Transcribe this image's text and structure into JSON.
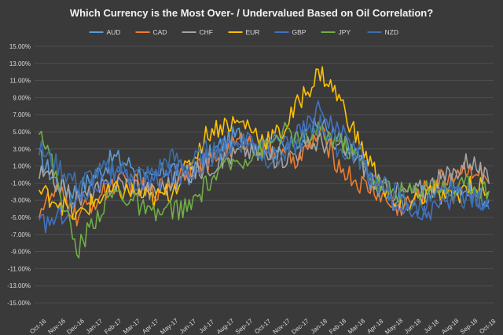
{
  "chart_data": {
    "type": "line",
    "title": "Which Currency is the Most Over- / Undervalued Based on Oil Correlation?",
    "xlabel": "",
    "ylabel": "",
    "ylim": [
      -15,
      15
    ],
    "y_ticks": [
      "15.00%",
      "13.00%",
      "11.00%",
      "9.00%",
      "7.00%",
      "5.00%",
      "3.00%",
      "1.00%",
      "-1.00%",
      "-3.00%",
      "-5.00%",
      "-7.00%",
      "-9.00%",
      "-11.00%",
      "-13.00%",
      "-15.00%"
    ],
    "x_ticks": [
      "Oct-16",
      "Nov-16",
      "Dec-16",
      "Jan-17",
      "Feb-17",
      "Mar-17",
      "Apr-17",
      "May-17",
      "Jun-17",
      "Jul-17",
      "Aug-17",
      "Sep-17",
      "Oct-17",
      "Nov-17",
      "Dec-17",
      "Jan-18",
      "Feb-18",
      "Mar-18",
      "Apr-18",
      "May-18",
      "Jun-18",
      "Jul-18",
      "Aug-18",
      "Sep-18",
      "Oct-18"
    ],
    "legend_position": "top",
    "grid": true,
    "series": [
      {
        "name": "AUD",
        "color": "#5b9bd5",
        "values": [
          2.0,
          -1.0,
          -2.0,
          0.0,
          2.0,
          1.0,
          -1.0,
          1.0,
          0.0,
          2.0,
          4.0,
          5.0,
          3.0,
          3.0,
          4.0,
          6.0,
          4.0,
          2.0,
          -2.0,
          -3.0,
          -3.0,
          -2.0,
          -1.0,
          -2.0,
          -3.0
        ]
      },
      {
        "name": "CAD",
        "color": "#ed7d31",
        "values": [
          -4.0,
          -2.0,
          -5.0,
          -3.0,
          -1.0,
          -1.0,
          -2.0,
          -1.0,
          1.0,
          1.0,
          3.0,
          4.0,
          3.0,
          2.0,
          2.0,
          5.0,
          1.0,
          -1.0,
          -2.0,
          -4.0,
          -3.0,
          -1.0,
          0.0,
          1.0,
          -1.0
        ]
      },
      {
        "name": "CHF",
        "color": "#a5a5a5",
        "values": [
          0.0,
          -1.0,
          -3.0,
          -2.0,
          -1.0,
          -1.0,
          -2.0,
          -1.0,
          0.0,
          1.0,
          2.0,
          3.0,
          2.0,
          2.0,
          3.0,
          4.0,
          3.0,
          2.0,
          -1.0,
          -2.0,
          -2.0,
          -1.0,
          0.0,
          2.0,
          -1.0
        ]
      },
      {
        "name": "EUR",
        "color": "#ffc000",
        "values": [
          -2.0,
          -3.0,
          -5.0,
          -3.0,
          -2.0,
          -2.0,
          -3.0,
          -2.0,
          1.0,
          5.0,
          6.0,
          6.0,
          4.0,
          5.0,
          9.0,
          12.0,
          9.0,
          4.0,
          0.0,
          -4.0,
          -3.0,
          -2.0,
          -3.0,
          -1.0,
          -2.0
        ]
      },
      {
        "name": "GBP",
        "color": "#4472c4",
        "values": [
          -6.0,
          -5.0,
          -3.0,
          -1.0,
          0.0,
          -1.0,
          -1.0,
          0.0,
          0.0,
          2.0,
          3.0,
          4.0,
          3.0,
          4.0,
          5.0,
          8.0,
          5.0,
          3.0,
          -1.0,
          -3.0,
          -5.0,
          -4.0,
          -3.0,
          -2.0,
          -4.0
        ]
      },
      {
        "name": "JPY",
        "color": "#70ad47",
        "values": [
          6.0,
          -1.0,
          -9.0,
          -5.0,
          -2.0,
          -3.0,
          -5.0,
          -4.0,
          -4.0,
          -1.0,
          1.0,
          2.0,
          3.0,
          5.0,
          4.0,
          5.0,
          4.0,
          2.0,
          -1.0,
          -2.0,
          -2.0,
          -1.0,
          -2.0,
          -1.0,
          -2.0
        ]
      },
      {
        "name": "NZD",
        "color": "#3d6faa",
        "values": [
          3.0,
          1.0,
          -1.0,
          0.0,
          1.0,
          0.0,
          0.0,
          2.0,
          1.0,
          3.0,
          3.0,
          4.0,
          2.0,
          2.0,
          4.0,
          6.0,
          3.0,
          2.0,
          -1.0,
          -2.0,
          -4.0,
          -3.0,
          -2.0,
          -3.0,
          -3.0
        ]
      }
    ]
  }
}
